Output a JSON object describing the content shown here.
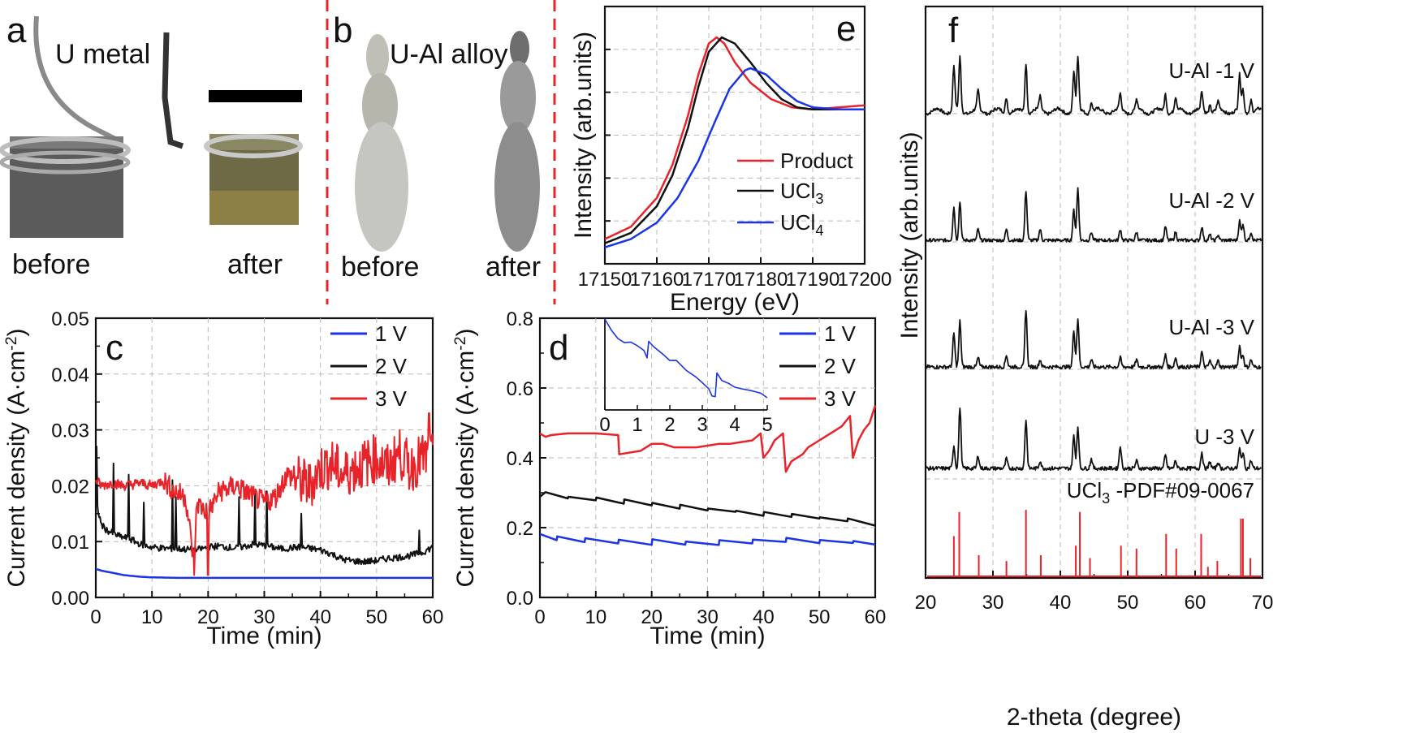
{
  "colors": {
    "red": "#e8232a",
    "black": "#111111",
    "blue": "#1a34e6",
    "grid": "#b8b8b8",
    "dash": "#e8232a"
  },
  "panel_a": {
    "letter": "a",
    "title": "U metal",
    "before": "before",
    "after": "after",
    "icons": [
      "u-metal-before-photo",
      "u-metal-after-photo",
      "scale-bar"
    ]
  },
  "panel_b": {
    "letter": "b",
    "title": "U-Al alloy",
    "before": "before",
    "after": "after",
    "icons": [
      "u-al-alloy-before-photo",
      "u-al-alloy-after-photo"
    ]
  },
  "chart_data": [
    {
      "id": "e",
      "type": "line",
      "panel": "e",
      "title": "",
      "xlabel": "Energy (eV)",
      "ylabel": "Intensity (arb.units)",
      "xlim": [
        17150,
        17200
      ],
      "xticks": [
        "17150",
        "17160",
        "17170",
        "17180",
        "17190",
        "17200"
      ],
      "legend_position": "bottom-right",
      "series": [
        {
          "name": "Product",
          "color": "#e8232a",
          "x": [
            17150,
            17155,
            17160,
            17163,
            17166,
            17168,
            17170,
            17171.5,
            17173,
            17175,
            17178,
            17182,
            17186,
            17190,
            17195,
            17200
          ],
          "y": [
            0.02,
            0.08,
            0.22,
            0.38,
            0.62,
            0.82,
            0.97,
            1.0,
            0.97,
            0.88,
            0.78,
            0.7,
            0.66,
            0.65,
            0.66,
            0.67
          ]
        },
        {
          "name": "UCl3",
          "label_base": "UCl",
          "label_sub": "3",
          "color": "#111111",
          "x": [
            17150,
            17155,
            17160,
            17163,
            17166,
            17168,
            17170,
            17172.5,
            17175,
            17178,
            17181,
            17184,
            17187,
            17190,
            17195,
            17200
          ],
          "y": [
            0.0,
            0.05,
            0.18,
            0.33,
            0.56,
            0.76,
            0.93,
            1.0,
            0.97,
            0.88,
            0.78,
            0.7,
            0.66,
            0.65,
            0.65,
            0.65
          ]
        },
        {
          "name": "UCl4",
          "label_base": "UCl",
          "label_sub": "4",
          "color": "#1a34e6",
          "x": [
            17150,
            17155,
            17160,
            17164,
            17168,
            17171,
            17174,
            17177,
            17178,
            17181,
            17184,
            17187,
            17190,
            17195,
            17200
          ],
          "y": [
            -0.02,
            0.02,
            0.1,
            0.22,
            0.4,
            0.58,
            0.75,
            0.84,
            0.85,
            0.82,
            0.75,
            0.69,
            0.66,
            0.65,
            0.65
          ]
        }
      ]
    },
    {
      "id": "f",
      "type": "line",
      "panel": "f",
      "xlabel": "2-theta (degree)",
      "ylabel": "Intensity (arb.units)",
      "xlim": [
        20,
        70
      ],
      "xticks": [
        "20",
        "30",
        "40",
        "50",
        "60",
        "70"
      ],
      "reference_label": "UCl3 -PDF#09-0067",
      "reference_base": "UCl",
      "reference_sub": "3",
      "reference_rest": " -PDF#09-0067",
      "peaks_deg": [
        24.2,
        25.1,
        27.8,
        32.0,
        34.9,
        37.0,
        42.0,
        42.6,
        44.6,
        48.9,
        51.3,
        55.6,
        57.1,
        61.0,
        62.2,
        63.4,
        66.6,
        67.1,
        68.3
      ],
      "reference_sticks": [
        {
          "x": 24.2,
          "h": 0.55
        },
        {
          "x": 25.0,
          "h": 0.88
        },
        {
          "x": 27.9,
          "h": 0.29
        },
        {
          "x": 32.0,
          "h": 0.21
        },
        {
          "x": 34.9,
          "h": 0.91
        },
        {
          "x": 37.1,
          "h": 0.29
        },
        {
          "x": 42.3,
          "h": 0.42
        },
        {
          "x": 42.9,
          "h": 0.88
        },
        {
          "x": 44.4,
          "h": 0.25
        },
        {
          "x": 49.0,
          "h": 0.42
        },
        {
          "x": 51.3,
          "h": 0.38
        },
        {
          "x": 55.7,
          "h": 0.58
        },
        {
          "x": 57.2,
          "h": 0.38
        },
        {
          "x": 60.9,
          "h": 0.58
        },
        {
          "x": 61.9,
          "h": 0.13
        },
        {
          "x": 63.3,
          "h": 0.21
        },
        {
          "x": 66.8,
          "h": 0.79
        },
        {
          "x": 67.1,
          "h": 0.79
        },
        {
          "x": 68.2,
          "h": 0.25
        }
      ],
      "series": [
        {
          "name": "U-Al -1 V",
          "heights": [
            0.85,
            1.0,
            0.35,
            0.3,
            0.95,
            0.25,
            0.75,
            1.0,
            0.2,
            0.3,
            0.2,
            0.35,
            0.25,
            0.35,
            0.15,
            0.15,
            0.65,
            0.4,
            0.25
          ]
        },
        {
          "name": "U-Al -2 V",
          "heights": [
            0.6,
            0.7,
            0.2,
            0.2,
            0.9,
            0.2,
            0.55,
            0.95,
            0.15,
            0.2,
            0.15,
            0.25,
            0.15,
            0.25,
            0.1,
            0.1,
            0.35,
            0.3,
            0.15
          ]
        },
        {
          "name": "U-Al -3 V",
          "heights": [
            0.55,
            0.75,
            0.15,
            0.2,
            0.95,
            0.12,
            0.6,
            0.8,
            0.12,
            0.15,
            0.12,
            0.2,
            0.15,
            0.25,
            0.1,
            0.1,
            0.35,
            0.2,
            0.12
          ]
        },
        {
          "name": "U -3 V",
          "heights": [
            0.35,
            0.95,
            0.2,
            0.15,
            0.75,
            0.12,
            0.5,
            0.65,
            0.15,
            0.35,
            0.12,
            0.2,
            0.12,
            0.25,
            0.1,
            0.1,
            0.3,
            0.25,
            0.12
          ]
        }
      ]
    },
    {
      "id": "c",
      "type": "line",
      "panel": "c",
      "xlabel": "Time (min)",
      "ylabel": "Current density (A·cm-2)",
      "ylabel_base": "Current density (A·cm",
      "ylabel_sup": "-2",
      "ylabel_end": ")",
      "xlim": [
        0,
        60
      ],
      "ylim": [
        0,
        0.05
      ],
      "xticks": [
        "0",
        "10",
        "20",
        "30",
        "40",
        "50",
        "60"
      ],
      "yticks": [
        "0.00",
        "0.01",
        "0.02",
        "0.03",
        "0.04",
        "0.05"
      ],
      "legend_position": "top-right",
      "series": [
        {
          "name": "1 V",
          "label": "1 V",
          "color": "#1a34e6",
          "x": [
            0,
            1,
            3,
            5,
            8,
            10,
            15,
            20,
            30,
            40,
            50,
            60
          ],
          "y": [
            0.0051,
            0.0048,
            0.0044,
            0.004,
            0.0037,
            0.0036,
            0.0035,
            0.0035,
            0.0035,
            0.0035,
            0.0035,
            0.0035
          ]
        },
        {
          "name": "2 V",
          "label": "2 V",
          "color": "#111111",
          "x": [
            0,
            0.3,
            1,
            2,
            3,
            4,
            6,
            8,
            10,
            12,
            15,
            18,
            20,
            22,
            25,
            28,
            30,
            33,
            36,
            38,
            40,
            42,
            44,
            46,
            48,
            50,
            52,
            54,
            56,
            58,
            60
          ],
          "y": [
            0.027,
            0.016,
            0.013,
            0.012,
            0.0115,
            0.011,
            0.0105,
            0.0095,
            0.009,
            0.0088,
            0.0087,
            0.0085,
            0.009,
            0.0092,
            0.0088,
            0.0095,
            0.0093,
            0.0087,
            0.009,
            0.0088,
            0.0085,
            0.0078,
            0.0068,
            0.0065,
            0.0064,
            0.0066,
            0.007,
            0.0072,
            0.0075,
            0.008,
            0.009
          ]
        },
        {
          "name": "3 V",
          "label": "3 V",
          "color": "#e8232a",
          "x": [
            0,
            1,
            3,
            5,
            8,
            10,
            12,
            14,
            16,
            17.5,
            18,
            20,
            22,
            25,
            28,
            30,
            32,
            34,
            36,
            38,
            40,
            42,
            44,
            46,
            48,
            50,
            52,
            54,
            56,
            58,
            60
          ],
          "y": [
            0.021,
            0.02,
            0.0205,
            0.02,
            0.0205,
            0.02,
            0.021,
            0.019,
            0.018,
            0.006,
            0.017,
            0.015,
            0.019,
            0.02,
            0.018,
            0.017,
            0.018,
            0.022,
            0.021,
            0.02,
            0.023,
            0.024,
            0.022,
            0.023,
            0.024,
            0.025,
            0.023,
            0.026,
            0.023,
            0.025,
            0.025
          ]
        }
      ],
      "spikes_2V": [
        {
          "x": 0.2,
          "y": 0.027
        },
        {
          "x": 3.2,
          "y": 0.024
        },
        {
          "x": 5.8,
          "y": 0.022
        },
        {
          "x": 8.5,
          "y": 0.017
        },
        {
          "x": 13.7,
          "y": 0.021
        },
        {
          "x": 14.2,
          "y": 0.018
        },
        {
          "x": 25.5,
          "y": 0.018
        },
        {
          "x": 28.3,
          "y": 0.019
        },
        {
          "x": 30.5,
          "y": 0.019
        },
        {
          "x": 36.6,
          "y": 0.015
        },
        {
          "x": 57.6,
          "y": 0.012
        }
      ]
    },
    {
      "id": "d",
      "type": "line",
      "panel": "d",
      "xlabel": "Time (min)",
      "ylabel": "Current density (A·cm-2)",
      "ylabel_base": "Current density (A·cm",
      "ylabel_sup": "-2",
      "ylabel_end": ")",
      "xlim": [
        0,
        60
      ],
      "ylim": [
        0,
        0.8
      ],
      "xticks": [
        "0",
        "10",
        "20",
        "30",
        "40",
        "50",
        "60"
      ],
      "yticks": [
        "0.0",
        "0.2",
        "0.4",
        "0.6",
        "0.8"
      ],
      "legend_position": "top-right",
      "series": [
        {
          "name": "1 V",
          "label": "1 V",
          "color": "#1a34e6",
          "x": [
            0,
            3,
            3.1,
            8,
            8.1,
            14,
            14.1,
            20,
            20.1,
            26,
            26.1,
            32,
            32.1,
            38,
            38.1,
            44,
            44.1,
            50,
            50.1,
            56,
            56.1,
            60
          ],
          "y": [
            0.18,
            0.165,
            0.175,
            0.16,
            0.17,
            0.155,
            0.165,
            0.15,
            0.165,
            0.15,
            0.16,
            0.15,
            0.165,
            0.155,
            0.165,
            0.16,
            0.17,
            0.155,
            0.165,
            0.155,
            0.16,
            0.15
          ]
        },
        {
          "name": "2 V",
          "label": "2 V",
          "color": "#111111",
          "x": [
            0,
            1,
            5,
            5.1,
            10,
            10.1,
            15,
            15.1,
            20,
            20.1,
            25,
            25.1,
            30,
            30.1,
            35,
            35.1,
            40,
            40.1,
            45,
            45.1,
            50,
            50.1,
            55,
            55.1,
            60
          ],
          "y": [
            0.29,
            0.3,
            0.285,
            0.29,
            0.28,
            0.285,
            0.27,
            0.28,
            0.265,
            0.27,
            0.255,
            0.265,
            0.25,
            0.255,
            0.245,
            0.25,
            0.235,
            0.245,
            0.23,
            0.24,
            0.225,
            0.23,
            0.22,
            0.225,
            0.205
          ]
        },
        {
          "name": "3 V",
          "label": "3 V",
          "color": "#e8232a",
          "x": [
            0,
            1,
            2,
            5,
            10,
            14,
            14.2,
            18,
            20,
            22,
            24,
            28,
            30,
            32,
            34,
            36,
            38,
            39.5,
            40,
            41,
            42,
            43.5,
            44,
            45,
            47,
            48,
            50,
            52,
            54,
            55.5,
            56,
            57,
            58,
            59,
            60
          ],
          "y": [
            0.47,
            0.46,
            0.465,
            0.47,
            0.47,
            0.465,
            0.41,
            0.42,
            0.44,
            0.44,
            0.43,
            0.43,
            0.435,
            0.44,
            0.44,
            0.445,
            0.45,
            0.47,
            0.4,
            0.42,
            0.45,
            0.47,
            0.36,
            0.39,
            0.41,
            0.43,
            0.45,
            0.47,
            0.49,
            0.52,
            0.4,
            0.45,
            0.48,
            0.5,
            0.55
          ]
        }
      ],
      "inset": {
        "xlim": [
          0,
          5
        ],
        "xticks": [
          "0",
          "1",
          "2",
          "3",
          "4",
          "5"
        ],
        "color": "#1a34e6",
        "x": [
          0,
          0.2,
          0.4,
          0.6,
          0.8,
          1.0,
          1.2,
          1.3,
          1.35,
          1.5,
          1.8,
          2.0,
          2.2,
          2.5,
          2.8,
          3.0,
          3.2,
          3.3,
          3.4,
          3.45,
          3.6,
          3.8,
          4.0,
          4.2,
          4.5,
          4.8,
          5.0
        ],
        "y": [
          0.98,
          0.9,
          0.82,
          0.78,
          0.75,
          0.72,
          0.7,
          0.6,
          0.78,
          0.72,
          0.66,
          0.6,
          0.58,
          0.5,
          0.42,
          0.35,
          0.3,
          0.25,
          0.22,
          0.45,
          0.4,
          0.36,
          0.34,
          0.32,
          0.28,
          0.25,
          0.22
        ]
      }
    }
  ]
}
